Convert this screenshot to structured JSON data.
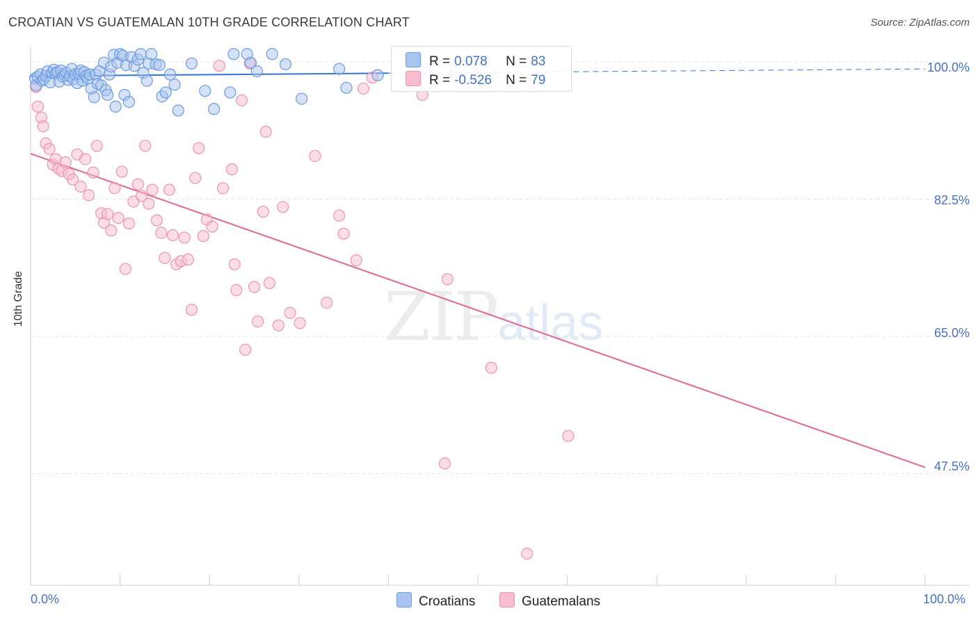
{
  "title": "CROATIAN VS GUATEMALAN 10TH GRADE CORRELATION CHART",
  "source": "Source: ZipAtlas.com",
  "watermark": {
    "zip": "ZIP",
    "atlas": "atlas"
  },
  "legend": {
    "rows": [
      {
        "r_label": "R =",
        "r_value": "0.078",
        "n_label": "N =",
        "n_value": "83"
      },
      {
        "r_label": "R =",
        "r_value": "-0.526",
        "n_label": "N =",
        "n_value": "79"
      }
    ]
  },
  "bottom_legend": {
    "series1": "Croatians",
    "series2": "Guatemalans"
  },
  "colors": {
    "croatians_fill": "#a9c4ee",
    "croatians_stroke": "#6a9be0",
    "croatians_line": "#2e75d1",
    "guatemalans_fill": "#f7bccd",
    "guatemalans_stroke": "#ee93ae",
    "guatemalans_line": "#e0668f",
    "grid": "#e4e4e4",
    "axis_text": "#4472c4"
  },
  "chart_data": {
    "type": "scatter",
    "title": "CROATIAN VS GUATEMALAN 10TH GRADE CORRELATION CHART",
    "xlabel": "",
    "ylabel": "10th Grade",
    "x_tick_labels": [
      "0.0%",
      "100.0%"
    ],
    "y_tick_labels": [
      "100.0%",
      "82.5%",
      "65.0%",
      "47.5%"
    ],
    "y_ticks": [
      100.0,
      82.5,
      65.0,
      47.5
    ],
    "xlim": [
      0,
      100
    ],
    "ylim": [
      34.6,
      101.6
    ],
    "grid": true,
    "legend_position": "top-center",
    "series": [
      {
        "name": "Croatians",
        "R": 0.078,
        "N": 83,
        "trend": {
          "x0": 0,
          "y0": 98.2,
          "x1": 100,
          "y1": 99.1,
          "solid_until_x": 40
        },
        "points": [
          [
            0.5,
            97.9
          ],
          [
            0.6,
            97.0
          ],
          [
            0.8,
            98.1
          ],
          [
            1.1,
            98.4
          ],
          [
            1.3,
            97.6
          ],
          [
            1.5,
            97.8
          ],
          [
            1.7,
            98.2
          ],
          [
            1.9,
            98.8
          ],
          [
            2.2,
            97.4
          ],
          [
            2.4,
            98.6
          ],
          [
            2.6,
            99.0
          ],
          [
            2.8,
            98.5
          ],
          [
            3.0,
            98.7
          ],
          [
            3.2,
            97.5
          ],
          [
            3.4,
            98.9
          ],
          [
            3.6,
            98.1
          ],
          [
            3.8,
            98.3
          ],
          [
            4.0,
            98.6
          ],
          [
            4.2,
            97.7
          ],
          [
            4.4,
            98.2
          ],
          [
            4.6,
            99.1
          ],
          [
            4.8,
            97.8
          ],
          [
            5.0,
            98.4
          ],
          [
            5.2,
            97.3
          ],
          [
            5.4,
            98.5
          ],
          [
            5.6,
            98.9
          ],
          [
            5.8,
            97.6
          ],
          [
            6.0,
            98.7
          ],
          [
            6.2,
            98.2
          ],
          [
            6.4,
            97.9
          ],
          [
            6.6,
            98.4
          ],
          [
            6.8,
            96.6
          ],
          [
            7.1,
            95.5
          ],
          [
            7.3,
            98.4
          ],
          [
            7.5,
            97.2
          ],
          [
            7.7,
            98.8
          ],
          [
            7.9,
            97.0
          ],
          [
            8.2,
            99.9
          ],
          [
            8.4,
            96.4
          ],
          [
            8.6,
            95.8
          ],
          [
            8.8,
            98.4
          ],
          [
            9.0,
            99.4
          ],
          [
            9.3,
            100.9
          ],
          [
            9.5,
            94.3
          ],
          [
            9.7,
            99.9
          ],
          [
            10.0,
            101.0
          ],
          [
            10.3,
            100.8
          ],
          [
            10.5,
            95.8
          ],
          [
            10.7,
            99.6
          ],
          [
            11.0,
            94.9
          ],
          [
            11.3,
            100.6
          ],
          [
            11.6,
            99.5
          ],
          [
            12.0,
            100.3
          ],
          [
            12.3,
            101.0
          ],
          [
            12.6,
            98.6
          ],
          [
            13.0,
            97.6
          ],
          [
            13.2,
            99.8
          ],
          [
            13.5,
            101.0
          ],
          [
            14.0,
            99.7
          ],
          [
            14.4,
            99.6
          ],
          [
            14.7,
            95.6
          ],
          [
            15.1,
            96.1
          ],
          [
            15.6,
            98.4
          ],
          [
            16.1,
            97.1
          ],
          [
            16.5,
            93.8
          ],
          [
            18.0,
            99.8
          ],
          [
            19.5,
            96.3
          ],
          [
            20.5,
            94.0
          ],
          [
            22.3,
            96.1
          ],
          [
            22.7,
            101.0
          ],
          [
            24.2,
            101.0
          ],
          [
            24.6,
            99.9
          ],
          [
            25.3,
            98.8
          ],
          [
            27.0,
            101.0
          ],
          [
            28.5,
            99.7
          ],
          [
            30.3,
            95.3
          ],
          [
            34.5,
            99.1
          ],
          [
            35.3,
            96.7
          ],
          [
            38.8,
            98.3
          ],
          [
            42.5,
            98.2
          ],
          [
            44.2,
            99.1
          ],
          [
            47.5,
            98.6
          ],
          [
            49.9,
            99.4
          ]
        ]
      },
      {
        "name": "Guatemalans",
        "R": -0.526,
        "N": 79,
        "trend": {
          "x0": 0,
          "y0": 88.3,
          "x1": 100,
          "y1": 48.3
        },
        "points": [
          [
            0.6,
            96.8
          ],
          [
            0.8,
            94.3
          ],
          [
            1.2,
            92.9
          ],
          [
            1.4,
            91.8
          ],
          [
            1.7,
            89.6
          ],
          [
            2.1,
            88.9
          ],
          [
            2.5,
            86.9
          ],
          [
            2.8,
            87.6
          ],
          [
            3.1,
            86.4
          ],
          [
            3.5,
            86.1
          ],
          [
            3.9,
            87.2
          ],
          [
            4.3,
            85.7
          ],
          [
            4.7,
            85.0
          ],
          [
            5.2,
            88.2
          ],
          [
            5.6,
            84.1
          ],
          [
            6.1,
            87.6
          ],
          [
            6.5,
            83.0
          ],
          [
            7.0,
            85.9
          ],
          [
            7.4,
            89.3
          ],
          [
            7.9,
            80.7
          ],
          [
            8.2,
            79.5
          ],
          [
            8.6,
            80.6
          ],
          [
            9.0,
            78.5
          ],
          [
            9.4,
            83.9
          ],
          [
            9.8,
            80.1
          ],
          [
            10.2,
            86.0
          ],
          [
            10.6,
            73.6
          ],
          [
            11.0,
            79.4
          ],
          [
            11.5,
            82.2
          ],
          [
            12.0,
            84.4
          ],
          [
            12.4,
            82.9
          ],
          [
            12.8,
            89.3
          ],
          [
            13.2,
            81.9
          ],
          [
            13.6,
            83.7
          ],
          [
            14.1,
            79.8
          ],
          [
            14.6,
            78.2
          ],
          [
            15.0,
            75.0
          ],
          [
            15.5,
            83.7
          ],
          [
            15.9,
            77.9
          ],
          [
            16.3,
            74.2
          ],
          [
            16.8,
            74.6
          ],
          [
            17.2,
            77.6
          ],
          [
            17.6,
            74.8
          ],
          [
            18.0,
            68.4
          ],
          [
            18.4,
            85.2
          ],
          [
            18.8,
            89.0
          ],
          [
            19.3,
            77.8
          ],
          [
            19.7,
            79.9
          ],
          [
            20.3,
            79.0
          ],
          [
            21.1,
            99.5
          ],
          [
            21.5,
            83.9
          ],
          [
            22.5,
            86.3
          ],
          [
            22.8,
            74.2
          ],
          [
            23.0,
            70.9
          ],
          [
            23.6,
            95.1
          ],
          [
            24.0,
            63.3
          ],
          [
            24.5,
            99.8
          ],
          [
            25.0,
            71.3
          ],
          [
            25.4,
            66.9
          ],
          [
            26.0,
            80.9
          ],
          [
            26.3,
            91.1
          ],
          [
            26.7,
            71.8
          ],
          [
            27.7,
            66.4
          ],
          [
            28.2,
            81.5
          ],
          [
            29.0,
            68.0
          ],
          [
            30.1,
            66.7
          ],
          [
            31.8,
            88.0
          ],
          [
            33.1,
            69.3
          ],
          [
            34.5,
            80.4
          ],
          [
            35.0,
            78.1
          ],
          [
            36.4,
            74.7
          ],
          [
            37.2,
            96.6
          ],
          [
            38.2,
            98.0
          ],
          [
            43.8,
            95.8
          ],
          [
            46.3,
            48.8
          ],
          [
            46.6,
            72.3
          ],
          [
            51.5,
            61.0
          ],
          [
            55.5,
            37.3
          ],
          [
            60.1,
            52.3
          ]
        ]
      }
    ]
  }
}
